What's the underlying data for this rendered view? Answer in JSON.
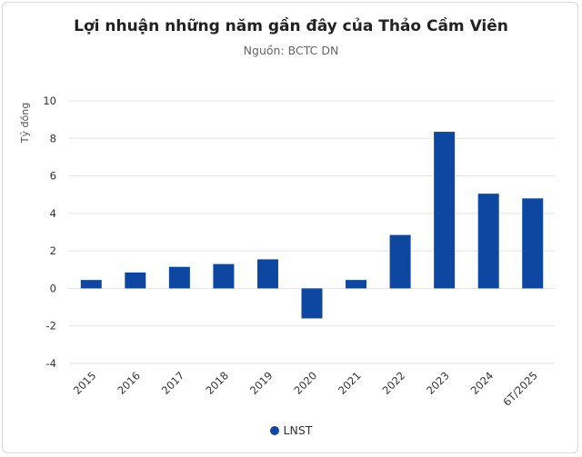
{
  "chart_data": {
    "type": "bar",
    "title": "Lợi nhuận những năm gần đây của Thảo Cầm Viên",
    "subtitle": "Nguồn: BCTC DN",
    "ylabel": "Tỷ đồng",
    "xlabel": "",
    "ylim": [
      -4,
      10
    ],
    "yticks": [
      -4,
      -2,
      0,
      2,
      4,
      6,
      8,
      10
    ],
    "grid": true,
    "legend_position": "bottom",
    "categories": [
      "2015",
      "2016",
      "2017",
      "2018",
      "2019",
      "2020",
      "2021",
      "2022",
      "2023",
      "2024",
      "6T/2025"
    ],
    "series": [
      {
        "name": "LNST",
        "color": "#0d47a1",
        "values": [
          0.45,
          0.85,
          1.15,
          1.3,
          1.55,
          -1.6,
          0.45,
          2.85,
          8.35,
          5.05,
          4.8
        ]
      }
    ]
  }
}
